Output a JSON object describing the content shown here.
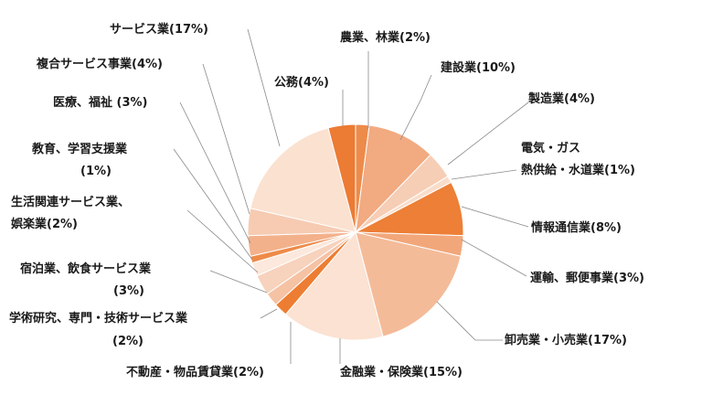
{
  "chart_data": {
    "type": "pie",
    "start_angle_deg": 0,
    "direction": "clockwise",
    "series": [
      {
        "label": "農業、林業(2%)",
        "value": 2,
        "color": "#ed8b4a"
      },
      {
        "label": "建設業(10%)",
        "value": 10,
        "color": "#f2aa80"
      },
      {
        "label": "製造業(4%)",
        "value": 4,
        "color": "#f6cdb5"
      },
      {
        "label": "電気・ガス熱供給・水道業(1%)",
        "value": 1,
        "color": "#f9ddcb"
      },
      {
        "label": "情報通信業(8%)",
        "value": 8,
        "color": "#ed7f36"
      },
      {
        "label": "運輸、郵便事業(3%)",
        "value": 3,
        "color": "#f2a77a"
      },
      {
        "label": "卸売業・小売業(17%)",
        "value": 17,
        "color": "#f4bb99"
      },
      {
        "label": "金融業・保険業(15%)",
        "value": 15,
        "color": "#fbe2d2"
      },
      {
        "label": "不動産・物品賃貸業(2%)",
        "value": 2,
        "color": "#ed7d32"
      },
      {
        "label": "学術研究、専門・技術サービス業(2%)",
        "value": 2,
        "color": "#f5c2a4"
      },
      {
        "label": "宿泊業、飲食サービス業(3%)",
        "value": 3,
        "color": "#f7d2bd"
      },
      {
        "label": "生活関連サービス業、娯楽業(2%)",
        "value": 2,
        "color": "#fce8dc"
      },
      {
        "label": "教育、学習支援業(1%)",
        "value": 1,
        "color": "#ee8a48"
      },
      {
        "label": "医療、福祉(3%)",
        "value": 3,
        "color": "#f3b18b"
      },
      {
        "label": "複合サービス事業(4%)",
        "value": 4,
        "color": "#f6cbb2"
      },
      {
        "label": "サービス業(17%)",
        "value": 17,
        "color": "#fbe1d0"
      },
      {
        "label": "公務(4%)",
        "value": 4,
        "color": "#ec7b33"
      }
    ]
  },
  "labels": {
    "agri": "農業、林業(2%)",
    "const": "建設業(10%)",
    "mfg": "製造業(4%)",
    "util_1": "電気・ガス",
    "util_2": "熱供給・水道業(1%)",
    "info": "情報通信業(8%)",
    "trans": "運輸、郵便事業(3%)",
    "retail": "卸売業・小売業(17%)",
    "fin": "金融業・保険業(15%)",
    "realestate": "不動産・物品賃貸業(2%)",
    "research_1": "学術研究、専門・技術サービス業",
    "research_2": "(2%)",
    "hotel_1": "宿泊業、飲食サービス業",
    "hotel_2": "(3%)",
    "living_1": "生活関連サービス業、",
    "living_2": "娯楽業(2%)",
    "edu_1": "教育、学習支援業",
    "edu_2": "(1%)",
    "medical": "医療、福祉 (3%)",
    "composite": "複合サービス事業(4%)",
    "service": "サービス業(17%)",
    "public": "公務(4%)"
  }
}
